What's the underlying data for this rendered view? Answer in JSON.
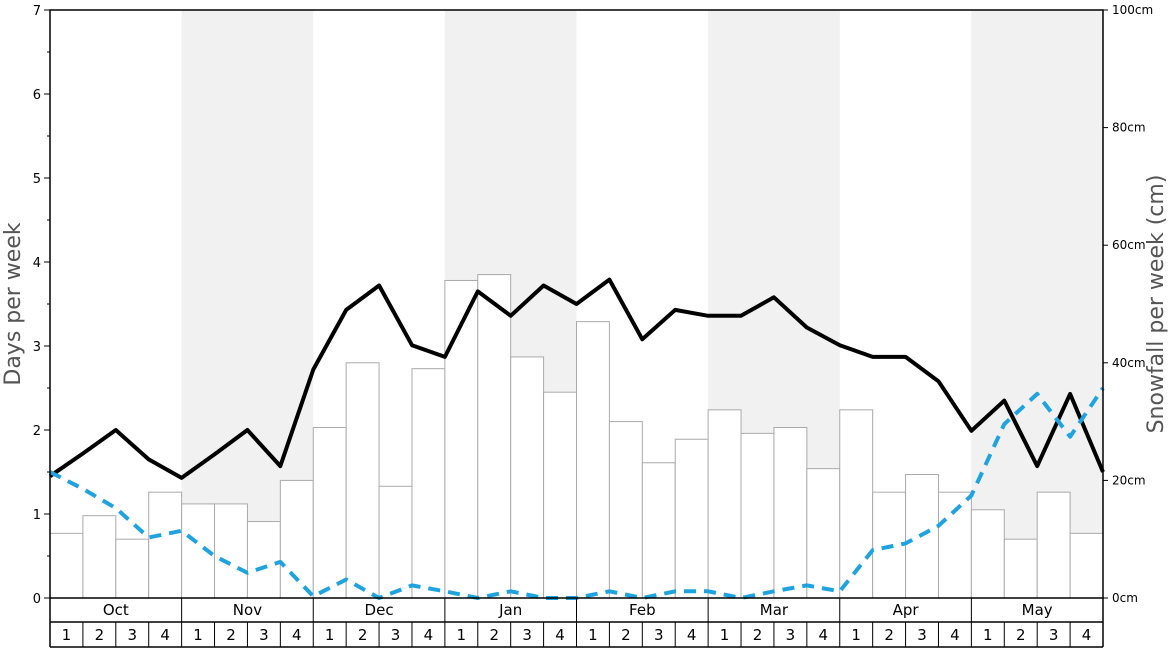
{
  "chart_data": {
    "type": "bar",
    "months": [
      "Oct",
      "Nov",
      "Dec",
      "Jan",
      "Feb",
      "Mar",
      "Apr",
      "May"
    ],
    "week_labels": [
      "1",
      "2",
      "3",
      "4"
    ],
    "ylabel_left": "Days per week",
    "ylabel_right": "Snowfall per week (cm)",
    "ylim_left": [
      0,
      7
    ],
    "ylim_right": [
      0,
      100
    ],
    "left_ticks": [
      "0",
      "1",
      "2",
      "3",
      "4",
      "5",
      "6",
      "7"
    ],
    "right_ticks": [
      "0cm",
      "20cm",
      "40cm",
      "60cm",
      "80cm",
      "100cm"
    ],
    "alternating_month_shading": true,
    "series": [
      {
        "kind": "bar",
        "axis": "right",
        "values": [
          11,
          14,
          10,
          18,
          16,
          16,
          13,
          20,
          29,
          40,
          19,
          39,
          54,
          55,
          41,
          35,
          47,
          30,
          23,
          27,
          32,
          28,
          29,
          22,
          32,
          18,
          21,
          18,
          15,
          10,
          18,
          11
        ],
        "color": "#ffffff",
        "stroke": "#aaaaaa"
      },
      {
        "kind": "line",
        "axis": "left",
        "style": "solid",
        "values": [
          1.45,
          1.72,
          2.0,
          1.65,
          1.43,
          1.71,
          2.0,
          1.57,
          2.72,
          3.43,
          3.72,
          3.01,
          2.87,
          3.65,
          3.36,
          3.72,
          3.5,
          3.79,
          3.08,
          3.43,
          3.36,
          3.36,
          3.58,
          3.22,
          3.01,
          2.87,
          2.87,
          2.58,
          1.99,
          2.35,
          1.57,
          2.43,
          1.5
        ],
        "color": "#000000"
      },
      {
        "kind": "line",
        "axis": "left",
        "style": "dashed",
        "values": [
          1.5,
          1.3,
          1.07,
          0.72,
          0.8,
          0.5,
          0.3,
          0.43,
          0.02,
          0.22,
          0.0,
          0.15,
          0.08,
          0.0,
          0.08,
          0.0,
          0.0,
          0.08,
          0.0,
          0.08,
          0.08,
          0.0,
          0.08,
          0.15,
          0.08,
          0.57,
          0.65,
          0.86,
          1.22,
          2.07,
          2.43,
          1.92,
          2.5
        ],
        "color": "#1ea3e0"
      }
    ]
  }
}
